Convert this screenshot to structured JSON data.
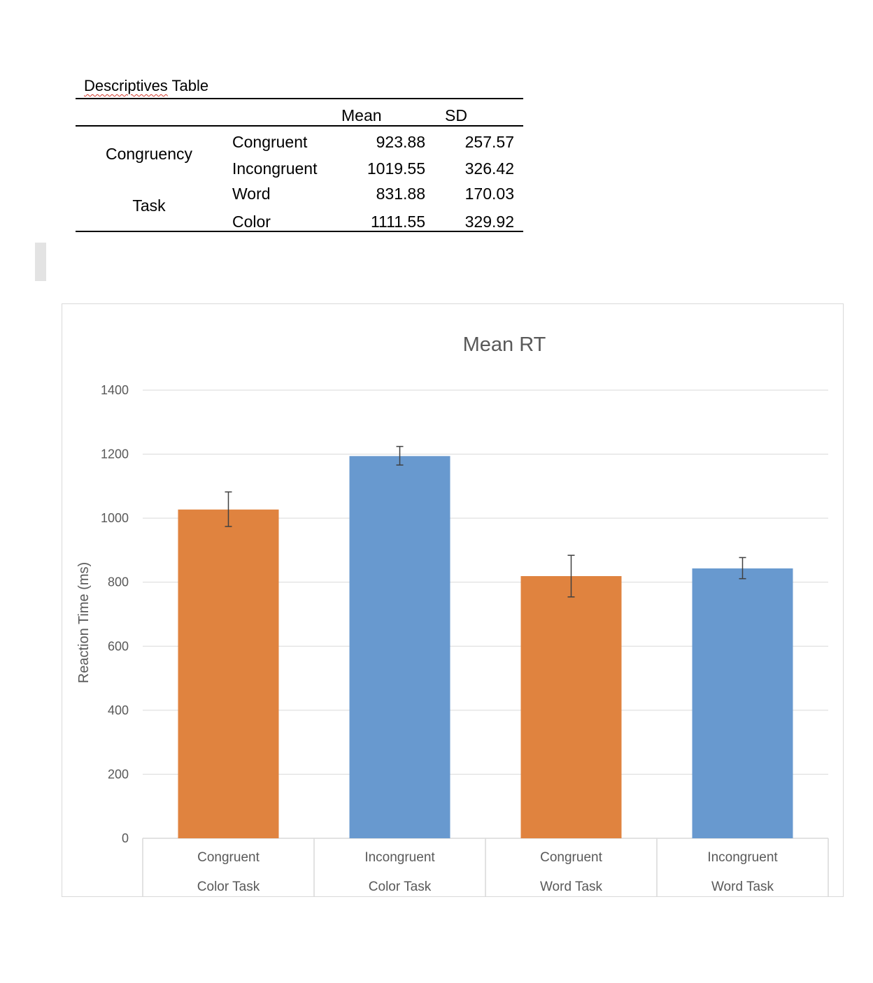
{
  "table": {
    "caption_underlined": "Descriptives",
    "caption_rest": " Table",
    "headers": {
      "mean": "Mean",
      "sd": "SD"
    },
    "groups": [
      {
        "name": "Congruency",
        "rows": [
          {
            "level": "Congruent",
            "mean": "923.88",
            "sd": "257.57"
          },
          {
            "level": "Incongruent",
            "mean": "1019.55",
            "sd": "326.42"
          }
        ]
      },
      {
        "name": "Task",
        "rows": [
          {
            "level": "Word",
            "mean": "831.88",
            "sd": "170.03"
          },
          {
            "level": "Color",
            "mean": "1111.55",
            "sd": "329.92"
          }
        ]
      }
    ]
  },
  "colors": {
    "orange": "#e0833f",
    "blue": "#6899cf",
    "grid": "#d9d9d9",
    "axis_text": "#595959",
    "error_bar": "#404040"
  },
  "chart_data": {
    "type": "bar",
    "title": "Mean RT",
    "ylabel": "Reaction Time (ms)",
    "xlabel": "",
    "ylim": [
      0,
      1400
    ],
    "yticks": [
      0,
      200,
      400,
      600,
      800,
      1000,
      1200,
      1400
    ],
    "grid": true,
    "legend": "none",
    "categories": [
      {
        "level": "Congruent",
        "group": "Color Task"
      },
      {
        "level": "Incongruent",
        "group": "Color Task"
      },
      {
        "level": "Congruent",
        "group": "Word Task"
      },
      {
        "level": "Incongruent",
        "group": "Word Task"
      }
    ],
    "values": [
      1027,
      1194,
      819,
      843
    ],
    "error_low": [
      974,
      1166,
      754,
      811
    ],
    "error_high": [
      1082,
      1224,
      884,
      877
    ],
    "bar_colors": [
      "#e0833f",
      "#6899cf",
      "#e0833f",
      "#6899cf"
    ]
  }
}
